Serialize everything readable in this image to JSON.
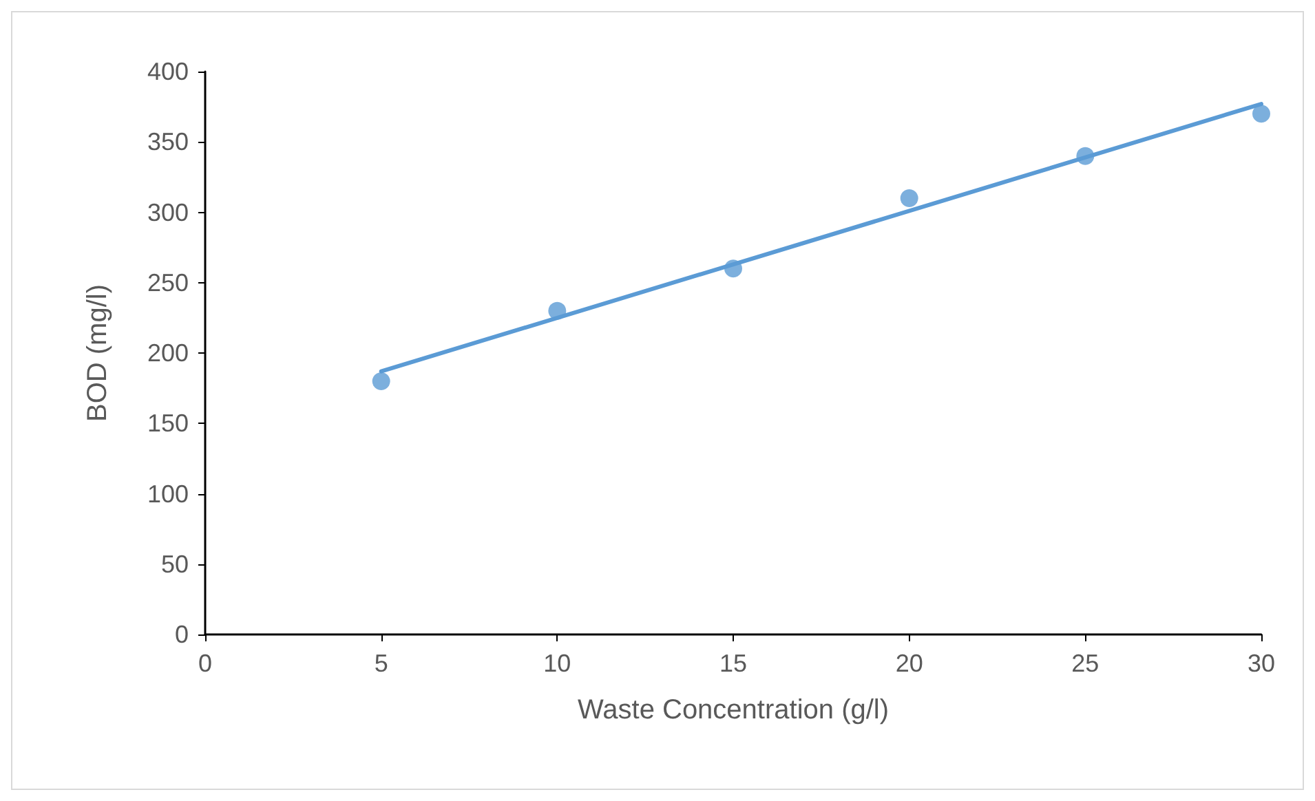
{
  "chart_data": {
    "type": "scatter",
    "xlabel": "Waste Concentration (g/l)",
    "ylabel": "BOD (mg/l)",
    "xlim": [
      0,
      30
    ],
    "xticks": [
      0,
      5,
      10,
      15,
      20,
      25,
      30
    ],
    "ylim": [
      0,
      400
    ],
    "yticks": [
      0,
      50,
      100,
      150,
      200,
      250,
      300,
      350,
      400
    ],
    "grid": false,
    "marker": "circle",
    "series": [
      {
        "color": "#5b9bd5",
        "x": [
          5,
          10,
          15,
          20,
          25,
          30
        ],
        "values": [
          180,
          230,
          260,
          310,
          340,
          370
        ]
      },
      {
        "type": "line",
        "color": "#5b9bd5",
        "x": [
          5,
          30
        ],
        "values": [
          187,
          377
        ],
        "marker": "none",
        "line_style": "solid"
      }
    ]
  }
}
